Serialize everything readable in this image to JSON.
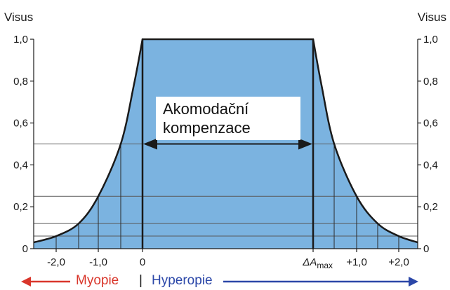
{
  "chart_data": {
    "type": "area",
    "ylabel_left": "Visus",
    "ylabel_right": "Visus",
    "ylim": [
      0,
      1.0
    ],
    "y_ticks": [
      "1,0",
      "0,8",
      "0,6",
      "0,4",
      "0,2",
      "0"
    ],
    "y_tick_values": [
      1.0,
      0.8,
      0.6,
      0.4,
      0.2,
      0.0
    ],
    "x_ticks": [
      "-2,0",
      "-1,0",
      "0",
      "ΔA",
      "+1,0",
      "+2,0"
    ],
    "x_tick_values": [
      -2.0,
      -1.0,
      0.0,
      1.0,
      2.0,
      3.0
    ],
    "x_tick_sub": {
      "ΔA": "max"
    },
    "xlim": [
      -2.5,
      3.5
    ],
    "horizontal_lines": [
      0.5,
      0.25,
      0.12,
      0.06
    ],
    "series": [
      {
        "values_left": [
          {
            "x": -2.5,
            "y": 0.03
          },
          {
            "x": -2.0,
            "y": 0.06
          },
          {
            "x": -1.5,
            "y": 0.12
          },
          {
            "x": -1.0,
            "y": 0.25
          },
          {
            "x": -0.5,
            "y": 0.5
          },
          {
            "x": -0.2,
            "y": 0.78
          },
          {
            "x": 0.0,
            "y": 1.0
          }
        ],
        "plateau": {
          "x_from": 0.0,
          "x_to": 1.0,
          "y": 1.0
        },
        "values_right": [
          {
            "x": 1.0,
            "y": 1.0
          },
          {
            "x": 1.2,
            "y": 0.78
          },
          {
            "x": 1.5,
            "y": 0.5
          },
          {
            "x": 2.0,
            "y": 0.25
          },
          {
            "x": 2.5,
            "y": 0.12
          },
          {
            "x": 3.0,
            "y": 0.06
          },
          {
            "x": 3.5,
            "y": 0.03
          }
        ]
      }
    ],
    "annotation": {
      "line1": "Akomodační",
      "line2": "kompenzace",
      "span_x": [
        0.0,
        1.0
      ],
      "y": 0.5
    },
    "fill_color": "#7bb3e0",
    "legend": {
      "left": "Myopie",
      "separator": "|",
      "right": "Hyperopie",
      "left_color": "#d9362b",
      "right_color": "#2b47a8"
    }
  }
}
